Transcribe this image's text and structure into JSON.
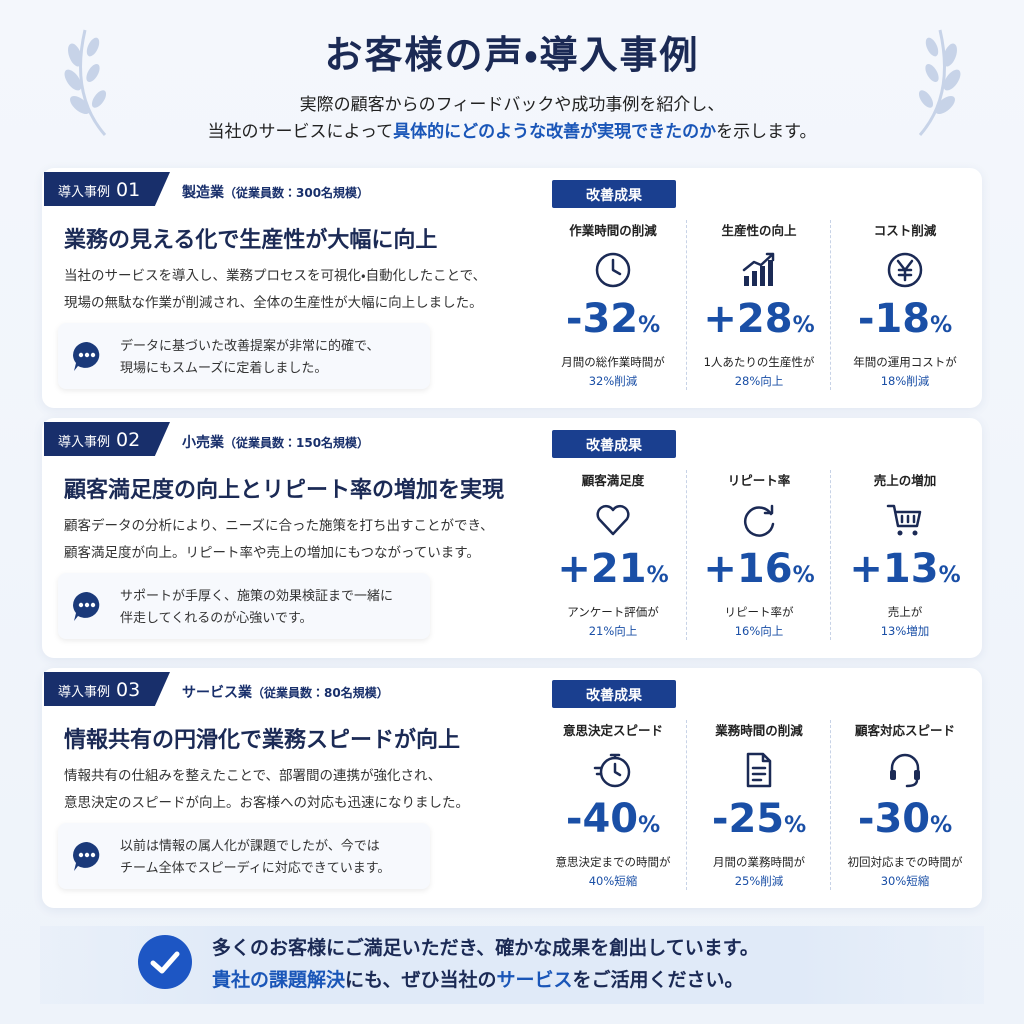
{
  "header": {
    "title": "お客様の声・導入事例",
    "subtitle_line1": "実際の顧客からのフィードバックや成功事例を紹介し、",
    "subtitle_line2": [
      "当社のサービスによって",
      "具体的にどのような改善が実現できたのか",
      "を示します。"
    ]
  },
  "cases": [
    {
      "badge_label": "導入事例",
      "badge_number": "01",
      "industry": "製造業",
      "company_size": "（従業員数：300名規模）",
      "headline": "業務の見える化で生産性が大幅に向上",
      "description_lines": [
        "当社のサービスを導入し、業務プロセスを可視化・自動化したことで、",
        "現場の無駄な作業が削減され、全体の生産性が大幅に向上しました。"
      ],
      "quote_lines": [
        "データに基づいた改善提案が非常に的確で、",
        "現場にもスムーズに定着しました。"
      ],
      "results_label": "改善成果",
      "metrics": [
        {
          "label": "作業時間の削減",
          "value": "-32",
          "unit": "%",
          "note_lines": [
            "月間の総作業時間が",
            "32%削減"
          ]
        },
        {
          "label": "生産性の向上",
          "value": "+28",
          "unit": "%",
          "note_lines": [
            "1人あたりの生産性が",
            "28%向上"
          ]
        },
        {
          "label": "コスト削減",
          "value": "-18",
          "unit": "%",
          "note_lines": [
            "年間の運用コストが",
            "18%削減"
          ]
        }
      ]
    },
    {
      "badge_label": "導入事例",
      "badge_number": "02",
      "industry": "小売業",
      "company_size": "（従業員数：150名規模）",
      "headline": "顧客満足度の向上とリピート率の増加を実現",
      "description_lines": [
        "顧客データの分析により、ニーズに合った施策を打ち出すことができ、",
        "顧客満足度が向上。リピート率や売上の増加にもつながっています。"
      ],
      "quote_lines": [
        "サポートが手厚く、施策の効果検証まで一緒に",
        "伴走してくれるのが心強いです。"
      ],
      "results_label": "改善成果",
      "metrics": [
        {
          "label": "顧客満足度",
          "value": "+21",
          "unit": "%",
          "note_lines": [
            "アンケート評価が",
            "21%向上"
          ]
        },
        {
          "label": "リピート率",
          "value": "+16",
          "unit": "%",
          "note_lines": [
            "リピート率が",
            "16%向上"
          ]
        },
        {
          "label": "売上の増加",
          "value": "+13",
          "unit": "%",
          "note_lines": [
            "売上が",
            "13%増加"
          ]
        }
      ]
    },
    {
      "badge_label": "導入事例",
      "badge_number": "03",
      "industry": "サービス業",
      "company_size": "（従業員数：80名規模）",
      "headline": "情報共有の円滑化で業務スピードが向上",
      "description_lines": [
        "情報共有の仕組みを整えたことで、部署間の連携が強化され、",
        "意思決定のスピードが向上。お客様への対応も迅速になりました。"
      ],
      "quote_lines": [
        "以前は情報の属人化が課題でしたが、今では",
        "チーム全体でスピーディに対応できています。"
      ],
      "results_label": "改善成果",
      "metrics": [
        {
          "label": "意思決定スピード",
          "value": "-40",
          "unit": "%",
          "note_lines": [
            "意思決定までの時間が",
            "40%短縮"
          ]
        },
        {
          "label": "業務時間の削減",
          "value": "-25",
          "unit": "%",
          "note_lines": [
            "月間の業務時間が",
            "25%削減"
          ]
        },
        {
          "label": "顧客対応スピード",
          "value": "-30",
          "unit": "%",
          "note_lines": [
            "初回対応までの時間が",
            "30%短縮"
          ]
        }
      ]
    }
  ],
  "footer": {
    "line1": "多くのお客様にご満足いただき、確かな成果を創出しています。",
    "line2": [
      "貴社の課題解決",
      "にも、ぜひ当社の",
      "サービス",
      "をご活用ください。"
    ]
  }
}
